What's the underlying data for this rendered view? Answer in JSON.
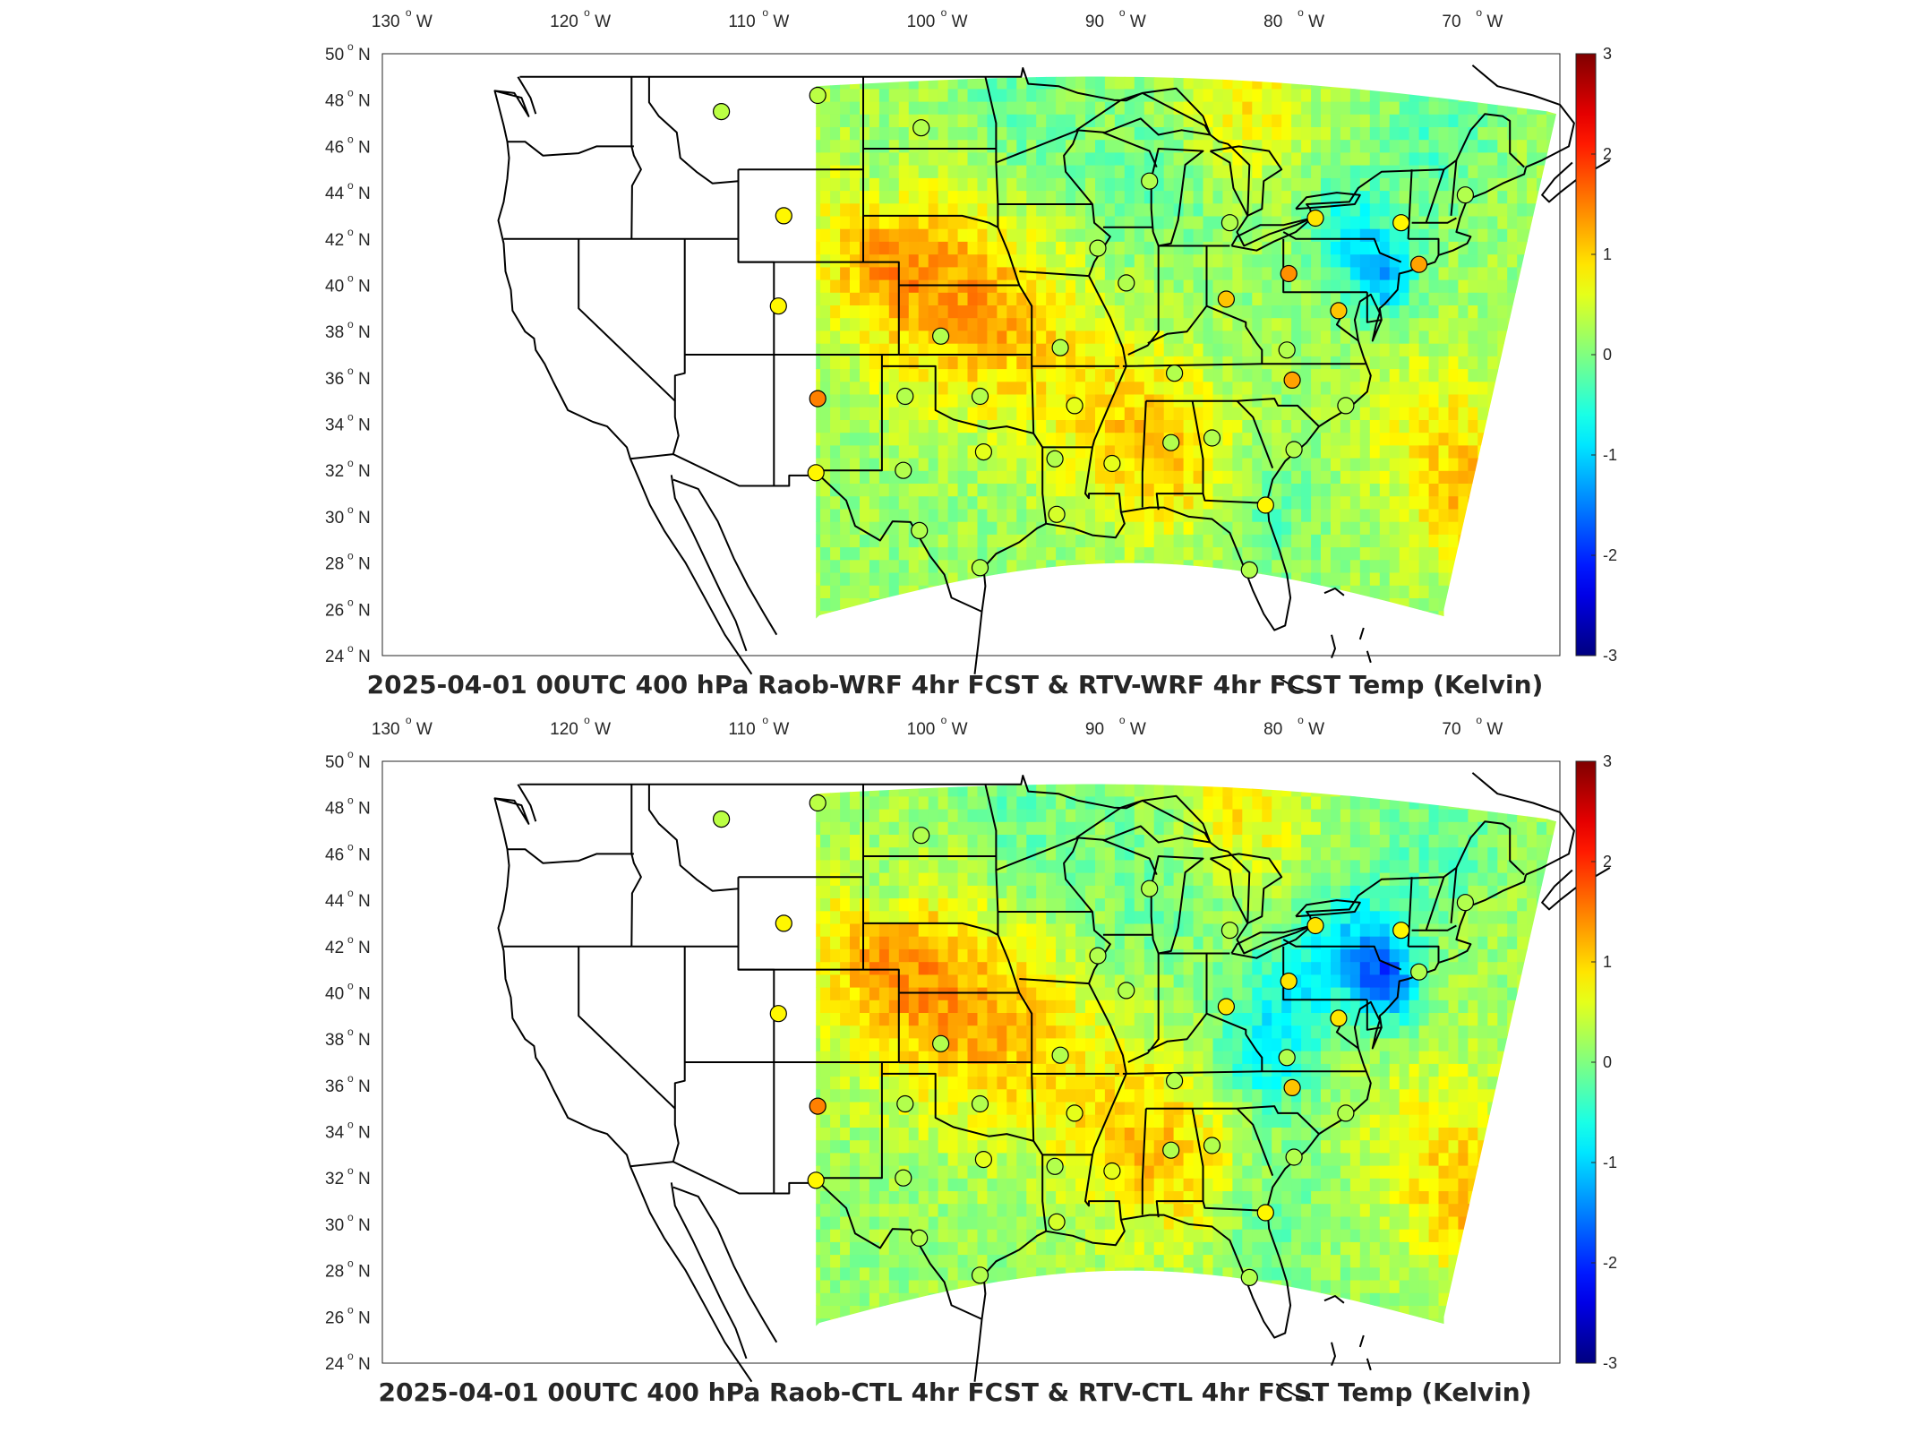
{
  "panels": [
    {
      "id": "top",
      "title": "2025-04-01 00UTC 400 hPa Raob-WRF 4hr FCST & RTV-WRF 4hr FCST Temp (Kelvin)",
      "variant": "wrf",
      "stations": [
        {
          "lon": -112.0,
          "lat": 47.5,
          "value": 0.35
        },
        {
          "lon": -106.6,
          "lat": 48.2,
          "value": 0.35
        },
        {
          "lon": -108.5,
          "lat": 43.0,
          "value": 0.8
        },
        {
          "lon": -108.8,
          "lat": 39.1,
          "value": 0.8
        },
        {
          "lon": -106.6,
          "lat": 35.1,
          "value": 1.5
        },
        {
          "lon": -106.7,
          "lat": 31.9,
          "value": 0.8
        },
        {
          "lon": -100.8,
          "lat": 46.8,
          "value": 0.3
        },
        {
          "lon": -99.7,
          "lat": 37.8,
          "value": 0.3
        },
        {
          "lon": -101.7,
          "lat": 35.2,
          "value": 0.3
        },
        {
          "lon": -97.5,
          "lat": 35.2,
          "value": 0.3
        },
        {
          "lon": -97.3,
          "lat": 32.8,
          "value": 0.6
        },
        {
          "lon": -101.8,
          "lat": 32.0,
          "value": 0.3
        },
        {
          "lon": -100.9,
          "lat": 29.4,
          "value": 0.3
        },
        {
          "lon": -97.5,
          "lat": 27.8,
          "value": 0.3
        },
        {
          "lon": -93.0,
          "lat": 37.3,
          "value": 0.3
        },
        {
          "lon": -92.2,
          "lat": 34.8,
          "value": 0.6
        },
        {
          "lon": -93.3,
          "lat": 32.5,
          "value": 0.3
        },
        {
          "lon": -93.2,
          "lat": 30.1,
          "value": 0.5
        },
        {
          "lon": -90.1,
          "lat": 32.3,
          "value": 0.6
        },
        {
          "lon": -90.9,
          "lat": 41.6,
          "value": 0.3
        },
        {
          "lon": -89.3,
          "lat": 40.1,
          "value": 0.3
        },
        {
          "lon": -88.0,
          "lat": 44.5,
          "value": 0.3
        },
        {
          "lon": -86.6,
          "lat": 36.2,
          "value": 0.3
        },
        {
          "lon": -86.8,
          "lat": 33.2,
          "value": 0.3
        },
        {
          "lon": -84.5,
          "lat": 33.4,
          "value": 0.3
        },
        {
          "lon": -83.5,
          "lat": 42.7,
          "value": 0.3
        },
        {
          "lon": -83.7,
          "lat": 39.4,
          "value": 1.1
        },
        {
          "lon": -80.2,
          "lat": 40.5,
          "value": 1.4
        },
        {
          "lon": -80.3,
          "lat": 37.2,
          "value": 0.3
        },
        {
          "lon": -80.0,
          "lat": 35.9,
          "value": 1.3
        },
        {
          "lon": -79.9,
          "lat": 32.9,
          "value": 0.3
        },
        {
          "lon": -81.5,
          "lat": 30.5,
          "value": 0.8
        },
        {
          "lon": -82.4,
          "lat": 27.7,
          "value": 0.3
        },
        {
          "lon": -78.7,
          "lat": 42.9,
          "value": 0.9
        },
        {
          "lon": -77.4,
          "lat": 38.9,
          "value": 1.1
        },
        {
          "lon": -73.9,
          "lat": 42.7,
          "value": 0.8
        },
        {
          "lon": -72.9,
          "lat": 40.9,
          "value": 1.3
        },
        {
          "lon": -77.0,
          "lat": 34.8,
          "value": 0.3
        },
        {
          "lon": -70.3,
          "lat": 43.9,
          "value": 0.3
        }
      ]
    },
    {
      "id": "bottom",
      "title": "2025-04-01 00UTC 400 hPa Raob-CTL 4hr FCST & RTV-CTL 4hr FCST Temp (Kelvin)",
      "variant": "ctl",
      "stations": [
        {
          "lon": -112.0,
          "lat": 47.5,
          "value": 0.35
        },
        {
          "lon": -106.6,
          "lat": 48.2,
          "value": 0.35
        },
        {
          "lon": -108.5,
          "lat": 43.0,
          "value": 0.8
        },
        {
          "lon": -108.8,
          "lat": 39.1,
          "value": 0.8
        },
        {
          "lon": -106.6,
          "lat": 35.1,
          "value": 1.5
        },
        {
          "lon": -106.7,
          "lat": 31.9,
          "value": 0.8
        },
        {
          "lon": -100.8,
          "lat": 46.8,
          "value": 0.3
        },
        {
          "lon": -99.7,
          "lat": 37.8,
          "value": 0.3
        },
        {
          "lon": -101.7,
          "lat": 35.2,
          "value": 0.3
        },
        {
          "lon": -97.5,
          "lat": 35.2,
          "value": 0.3
        },
        {
          "lon": -97.3,
          "lat": 32.8,
          "value": 0.6
        },
        {
          "lon": -101.8,
          "lat": 32.0,
          "value": 0.3
        },
        {
          "lon": -100.9,
          "lat": 29.4,
          "value": 0.3
        },
        {
          "lon": -97.5,
          "lat": 27.8,
          "value": 0.3
        },
        {
          "lon": -93.0,
          "lat": 37.3,
          "value": 0.3
        },
        {
          "lon": -92.2,
          "lat": 34.8,
          "value": 0.6
        },
        {
          "lon": -93.3,
          "lat": 32.5,
          "value": 0.3
        },
        {
          "lon": -93.2,
          "lat": 30.1,
          "value": 0.5
        },
        {
          "lon": -90.1,
          "lat": 32.3,
          "value": 0.6
        },
        {
          "lon": -90.9,
          "lat": 41.6,
          "value": 0.3
        },
        {
          "lon": -89.3,
          "lat": 40.1,
          "value": 0.3
        },
        {
          "lon": -88.0,
          "lat": 44.5,
          "value": 0.3
        },
        {
          "lon": -86.6,
          "lat": 36.2,
          "value": 0.3
        },
        {
          "lon": -86.8,
          "lat": 33.2,
          "value": 0.3
        },
        {
          "lon": -84.5,
          "lat": 33.4,
          "value": 0.3
        },
        {
          "lon": -83.5,
          "lat": 42.7,
          "value": 0.3
        },
        {
          "lon": -83.7,
          "lat": 39.4,
          "value": 0.9
        },
        {
          "lon": -80.2,
          "lat": 40.5,
          "value": 0.9
        },
        {
          "lon": -80.3,
          "lat": 37.2,
          "value": 0.3
        },
        {
          "lon": -80.0,
          "lat": 35.9,
          "value": 1.1
        },
        {
          "lon": -79.9,
          "lat": 32.9,
          "value": 0.3
        },
        {
          "lon": -81.5,
          "lat": 30.5,
          "value": 0.8
        },
        {
          "lon": -82.4,
          "lat": 27.7,
          "value": 0.3
        },
        {
          "lon": -78.7,
          "lat": 42.9,
          "value": 0.9
        },
        {
          "lon": -77.4,
          "lat": 38.9,
          "value": 0.9
        },
        {
          "lon": -73.9,
          "lat": 42.7,
          "value": 0.8
        },
        {
          "lon": -72.9,
          "lat": 40.9,
          "value": 0.3
        },
        {
          "lon": -77.0,
          "lat": 34.8,
          "value": 0.3
        },
        {
          "lon": -70.3,
          "lat": 43.9,
          "value": 0.3
        }
      ]
    }
  ],
  "map": {
    "lon_range": [
      -131,
      -65
    ],
    "lat_range": [
      24,
      50
    ],
    "lon_tick_labels": [
      "130",
      "120",
      "110",
      "100",
      "90",
      "80",
      "70"
    ],
    "lon_hemisphere": "W",
    "lat_tick_labels": [
      "50",
      "48",
      "46",
      "44",
      "42",
      "40",
      "38",
      "36",
      "34",
      "32",
      "30",
      "28",
      "26",
      "24"
    ],
    "lat_hemisphere": "N",
    "degree_symbol": "o"
  },
  "colorbar": {
    "range": [
      -3,
      3
    ],
    "tick_labels": [
      "3",
      "2",
      "1",
      "0",
      "-1",
      "-2",
      "-3"
    ],
    "colormap": "jet"
  },
  "colors": {
    "border": "#000000",
    "axis": "#262626",
    "background": "#ffffff"
  }
}
